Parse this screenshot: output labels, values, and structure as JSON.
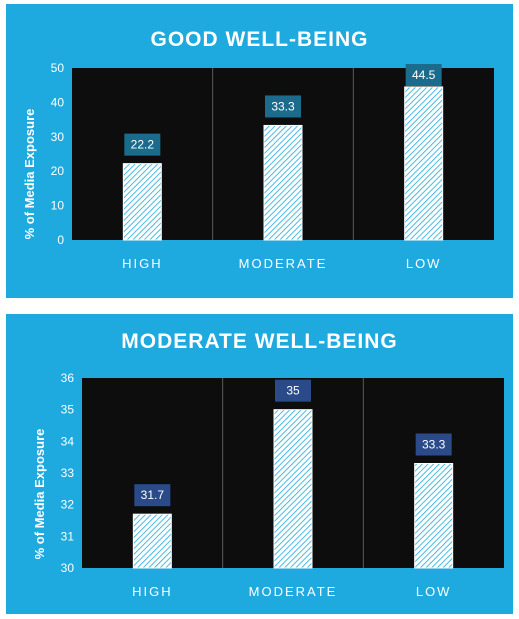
{
  "colors": {
    "panel_bg": "#1ea9df",
    "plot_bg": "#0d0d0d",
    "bar_hatch": "#1ea9df",
    "bar_fill": "#ffffff",
    "label_box_1": "#1b6c8c",
    "label_box_2": "#2a4a8a"
  },
  "chart_data": [
    {
      "type": "bar",
      "title": "GOOD WELL-BEING",
      "ylabel": "% of Media Exposure",
      "xlabel": "",
      "categories": [
        "HIGH",
        "MODERATE",
        "LOW"
      ],
      "values": [
        22.2,
        33.3,
        44.5
      ],
      "data_labels": [
        "22.2",
        "33.3",
        "44.5"
      ],
      "ylim": [
        0,
        50
      ],
      "yticks": [
        0,
        10,
        20,
        30,
        40,
        50
      ],
      "grid": "vertical separators between categories",
      "legend": "none"
    },
    {
      "type": "bar",
      "title": "MODERATE WELL-BEING",
      "ylabel": "% of Media Exposure",
      "xlabel": "",
      "categories": [
        "HIGH",
        "MODERATE",
        "LOW"
      ],
      "values": [
        31.7,
        35,
        33.3
      ],
      "data_labels": [
        "31.7",
        "35",
        "33.3"
      ],
      "ylim": [
        30,
        36
      ],
      "yticks": [
        30,
        31,
        32,
        33,
        34,
        35,
        36
      ],
      "grid": "vertical separators between categories",
      "legend": "none"
    }
  ]
}
